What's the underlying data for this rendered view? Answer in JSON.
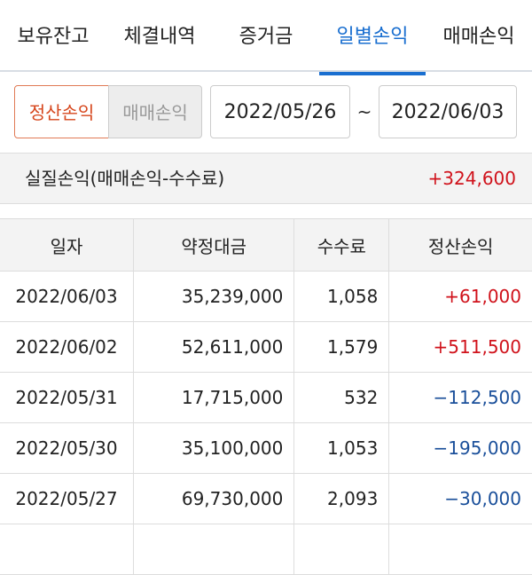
{
  "tabs": [
    "보유잔고",
    "체결내역",
    "증거금",
    "일별손익",
    "매매손익"
  ],
  "active_tab": 3,
  "toggle": [
    "정산손익",
    "매매손익"
  ],
  "date_from": "2022/05/26",
  "date_sep": "~",
  "date_to": "2022/06/03",
  "summary": {
    "label": "실질손익(매매손익-수수료)",
    "value": "+324,600"
  },
  "table": {
    "header": [
      "일자",
      "약정대금",
      "수수료",
      "정산손익"
    ],
    "rows": [
      [
        "2022/06/03",
        "35,239,000",
        "1,058",
        "+61,000"
      ],
      [
        "2022/06/02",
        "52,611,000",
        "1,579",
        "+511,500"
      ],
      [
        "2022/05/31",
        "17,715,000",
        "532",
        "−112,500"
      ],
      [
        "2022/05/30",
        "35,100,000",
        "1,053",
        "−195,000"
      ],
      [
        "2022/05/27",
        "69,730,000",
        "2,093",
        "−30,000"
      ]
    ]
  }
}
